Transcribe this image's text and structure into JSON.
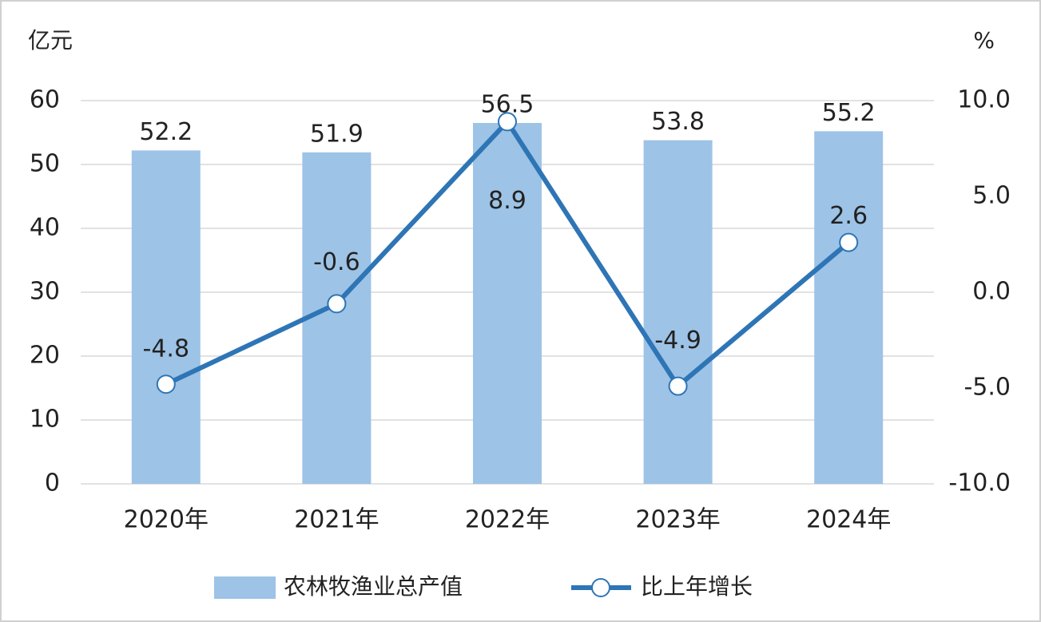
{
  "chart_data": {
    "type": "bar",
    "y_unit": "亿元",
    "y2_unit": "%",
    "categories": [
      "2020年",
      "2021年",
      "2022年",
      "2023年",
      "2024年"
    ],
    "series": [
      {
        "name": "农林牧渔业总产值",
        "type": "bar",
        "color": "#9dc3e6",
        "values": [
          52.2,
          51.9,
          56.5,
          53.8,
          55.2
        ]
      },
      {
        "name": "比上年增长",
        "type": "line",
        "axis": "y2",
        "color": "#2e75b6",
        "values": [
          -4.8,
          -0.6,
          8.9,
          -4.9,
          2.6
        ]
      }
    ],
    "ylim": [
      0,
      60
    ],
    "yticks": [
      0,
      10,
      20,
      30,
      40,
      50,
      60
    ],
    "y2lim": [
      -10,
      10
    ],
    "y2ticks": [
      {
        "value": -10,
        "label": "-10.0"
      },
      {
        "value": -5,
        "label": "-5.0"
      },
      {
        "value": 0,
        "label": "0.0"
      },
      {
        "value": 5,
        "label": "5.0"
      },
      {
        "value": 10,
        "label": "10.0"
      }
    ],
    "grid": true,
    "legend": "bottom"
  }
}
